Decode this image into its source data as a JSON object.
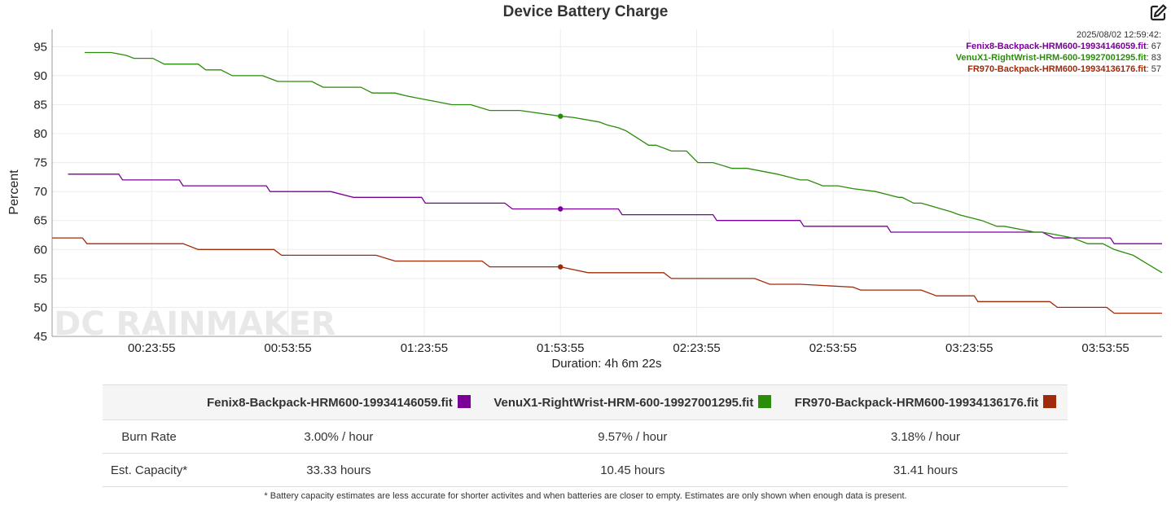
{
  "title": "Device Battery Charge",
  "chart_data": {
    "type": "line",
    "title": "Device Battery Charge",
    "xlabel": "Duration: 4h 6m 22s",
    "ylabel": "Percent",
    "ylim": [
      45,
      98
    ],
    "xlim_seconds": [
      120,
      14782
    ],
    "x_unit": "seconds elapsed",
    "xticks": [
      1435,
      3235,
      5035,
      6835,
      8635,
      10435,
      12235,
      14035
    ],
    "xtick_labels": [
      "00:23:55",
      "00:53:55",
      "01:23:55",
      "01:53:55",
      "02:23:55",
      "02:53:55",
      "03:23:55",
      "03:53:55"
    ],
    "yticks": [
      45,
      50,
      55,
      60,
      65,
      70,
      75,
      80,
      85,
      90,
      95
    ],
    "ytick_labels": [
      "45",
      "50",
      "55",
      "60",
      "65",
      "70",
      "75",
      "80",
      "85",
      "90",
      "95"
    ],
    "grid": true,
    "legend": "none",
    "watermark": "DC RAINMAKER",
    "series": [
      {
        "name": "Fenix8-Backpack-HRM600-19934146059.fit",
        "color": "#7a0099",
        "x": [
          330,
          1000,
          1050,
          1800,
          1850,
          2950,
          3000,
          3800,
          4100,
          5000,
          5050,
          6100,
          6200,
          6835,
          7600,
          7650,
          8850,
          8900,
          10000,
          10050,
          11150,
          11200,
          12400,
          13200,
          13350,
          14100,
          14150,
          14782
        ],
        "y": [
          73,
          73,
          72,
          72,
          71,
          71,
          70,
          70,
          69,
          69,
          68,
          68,
          67,
          67,
          67,
          66,
          66,
          65,
          65,
          64,
          64,
          63,
          63,
          63,
          62,
          62,
          61,
          61
        ]
      },
      {
        "name": "VenuX1-RightWrist-HRM-600-19927001295.fit",
        "color": "#2a8c0a",
        "x": [
          550,
          900,
          1100,
          1200,
          1450,
          1600,
          2050,
          2150,
          2350,
          2500,
          2900,
          3100,
          3550,
          3700,
          4200,
          4350,
          4650,
          4800,
          5000,
          5200,
          5400,
          5650,
          5900,
          6300,
          6835,
          7000,
          7350,
          7450,
          7600,
          7700,
          8000,
          8100,
          8300,
          8500,
          8650,
          8850,
          9100,
          9300,
          9700,
          10000,
          10100,
          10300,
          10500,
          10700,
          11000,
          11150,
          11300,
          11350,
          11500,
          11600,
          12000,
          12100,
          12400,
          12500,
          12600,
          12700,
          13100,
          13200,
          13400,
          13600,
          13800,
          14000,
          14150,
          14400,
          14782
        ],
        "y": [
          94,
          94,
          93.5,
          93,
          93,
          92,
          92,
          91,
          91,
          90,
          90,
          89,
          89,
          88,
          88,
          87,
          87,
          86.5,
          86,
          85.5,
          85,
          85,
          84,
          84,
          83,
          82.8,
          82,
          81.5,
          81,
          80.5,
          78,
          78,
          77,
          77,
          75,
          75,
          74,
          74,
          73,
          72,
          72,
          71,
          71,
          70.5,
          70,
          69.5,
          69,
          69,
          68,
          68,
          66.5,
          66,
          65,
          64.5,
          64,
          64,
          63,
          63,
          62.5,
          62,
          61,
          61,
          60,
          59,
          56
        ]
      },
      {
        "name": "FR970-Backpack-HRM600-19934136176.fit",
        "color": "#a02a0a",
        "x": [
          120,
          520,
          580,
          1850,
          2050,
          3050,
          3150,
          4400,
          4650,
          5800,
          5900,
          6835,
          7200,
          7400,
          8200,
          8300,
          9400,
          9600,
          10000,
          10700,
          10800,
          11600,
          11800,
          12300,
          12350,
          13300,
          13400,
          14050,
          14150,
          14782
        ],
        "y": [
          62,
          62,
          61,
          61,
          60,
          60,
          59,
          59,
          58,
          58,
          57,
          57,
          56,
          56,
          56,
          55,
          55,
          54,
          54,
          53.5,
          53,
          53,
          52,
          52,
          51,
          51,
          50,
          50,
          49,
          49
        ]
      }
    ],
    "highlight_points": [
      {
        "series": "Fenix8-Backpack-HRM600-19934146059.fit",
        "x": 6835,
        "y": 67
      },
      {
        "series": "VenuX1-RightWrist-HRM-600-19927001295.fit",
        "x": 6835,
        "y": 83
      },
      {
        "series": "FR970-Backpack-HRM600-19934136176.fit",
        "x": 6835,
        "y": 57
      }
    ]
  },
  "tooltip": {
    "timestamp": "2025/08/02 12:59:42:",
    "rows": [
      {
        "name": "Fenix8-Backpack-HRM600-19934146059.fit",
        "sep": ": ",
        "value": "67",
        "color": "#7a0099"
      },
      {
        "name": "VenuX1-RightWrist-HRM-600-19927001295.fit",
        "sep": ": ",
        "value": "83",
        "color": "#2a8c0a"
      },
      {
        "name": "FR970-Backpack-HRM600-19934136176.fit",
        "sep": ": ",
        "value": "57",
        "color": "#a02a0a"
      }
    ]
  },
  "summary": {
    "devices": [
      {
        "name": "Fenix8-Backpack-HRM600-19934146059.fit",
        "color": "#7a0099"
      },
      {
        "name": "VenuX1-RightWrist-HRM-600-19927001295.fit",
        "color": "#2a8c0a"
      },
      {
        "name": "FR970-Backpack-HRM600-19934136176.fit",
        "color": "#a02a0a"
      }
    ],
    "rows": [
      {
        "label": "Burn Rate",
        "values": [
          "3.00% / hour",
          "9.57% / hour",
          "3.18% / hour"
        ]
      },
      {
        "label": "Est. Capacity*",
        "values": [
          "33.33 hours",
          "10.45 hours",
          "31.41 hours"
        ]
      }
    ]
  },
  "footnote": "* Battery capacity estimates are less accurate for shorter activites and when batteries are closer to empty. Estimates are only shown when enough data is present.",
  "icons": {
    "edit": "edit-icon"
  }
}
